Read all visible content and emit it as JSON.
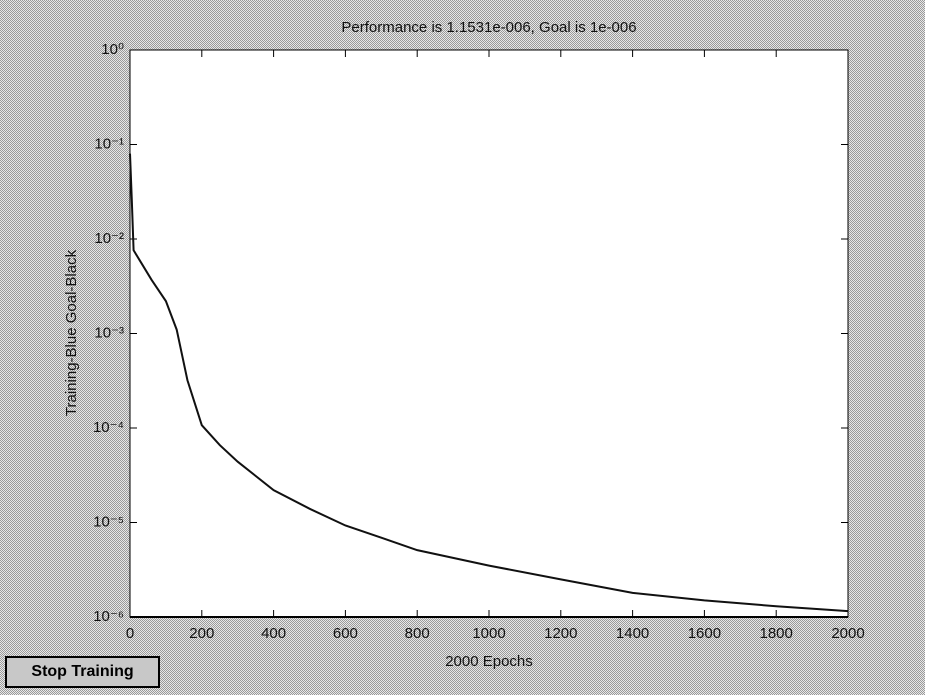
{
  "chart_data": {
    "type": "line",
    "title": "Performance is 1.1531e-006, Goal is 1e-006",
    "xlabel": "2000 Epochs",
    "ylabel": "Training-Blue  Goal-Black",
    "log_y": true,
    "xlim": [
      0,
      2000
    ],
    "xticks": [
      0,
      200,
      400,
      600,
      800,
      1000,
      1200,
      1400,
      1600,
      1800,
      2000
    ],
    "ylim": [
      1e-06,
      1
    ],
    "yticks": [
      {
        "value": 1,
        "label": "10⁰"
      },
      {
        "value": 0.1,
        "label": "10⁻¹"
      },
      {
        "value": 0.01,
        "label": "10⁻²"
      },
      {
        "value": 0.001,
        "label": "10⁻³"
      },
      {
        "value": 0.0001,
        "label": "10⁻⁴"
      },
      {
        "value": 1e-05,
        "label": "10⁻⁵"
      },
      {
        "value": 1e-06,
        "label": "10⁻⁶"
      }
    ],
    "series": [
      {
        "color": "#111111",
        "x": [
          0,
          5,
          10,
          30,
          60,
          100,
          130,
          160,
          200,
          250,
          300,
          400,
          500,
          600,
          700,
          800,
          1000,
          1200,
          1400,
          1600,
          1800,
          2000
        ],
        "values": [
          0.08,
          0.026,
          0.0076,
          0.0057,
          0.0037,
          0.0022,
          0.0011,
          0.00032,
          0.000107,
          6.6e-05,
          4.4e-05,
          2.2e-05,
          1.4e-05,
          9.3e-06,
          6.9e-06,
          5.1e-06,
          3.5e-06,
          2.5e-06,
          1.8e-06,
          1.5e-06,
          1.3e-06,
          1.1531e-06
        ]
      },
      {
        "color": "#000000",
        "x": [
          0,
          2000
        ],
        "values": [
          1e-06,
          1e-06
        ]
      }
    ],
    "button": "Stop Training"
  }
}
